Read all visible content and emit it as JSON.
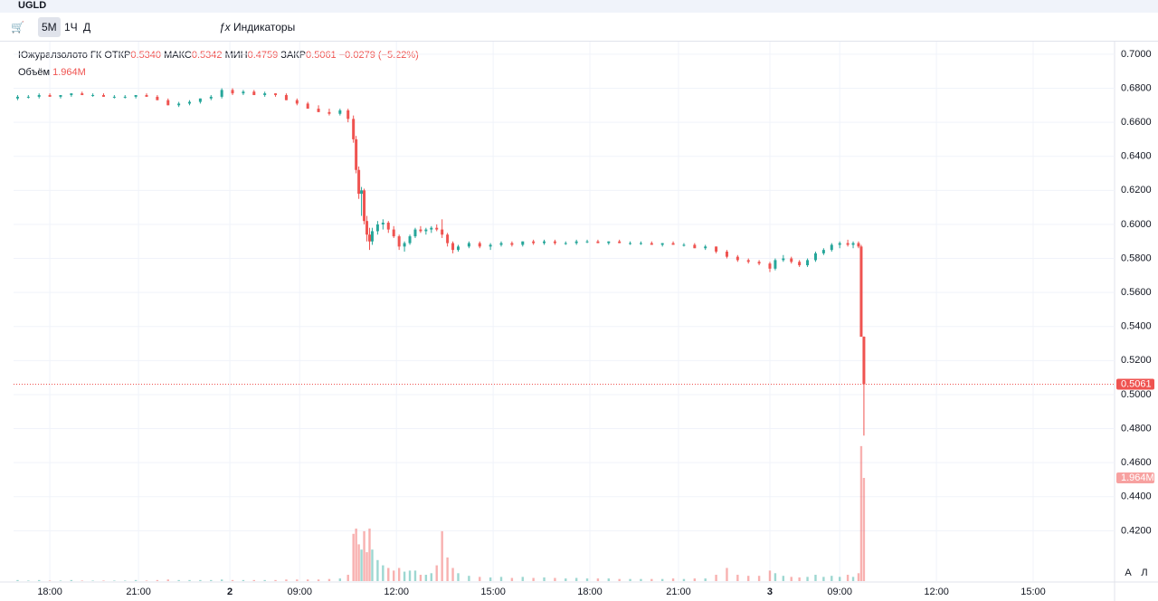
{
  "toolbar": {
    "symbol": "UGLD",
    "intervals": [
      "5М",
      "1Ч",
      "Д"
    ],
    "indicators": "Индикаторы"
  },
  "legend": {
    "name": "Южуралзолото ГК",
    "open_label": "ОТКР",
    "open": "0.5340",
    "high_label": "МАКС",
    "high": "0.5342",
    "low_label": "МИН",
    "low": "0.4759",
    "close_label": "ЗАКР",
    "close": "0.5061",
    "change": "−0.0279",
    "change_pct": "(−5.22%)",
    "volume_label": "Объём",
    "volume": "1.964M"
  },
  "scale_buttons": [
    "A",
    "Л"
  ],
  "chart_data": {
    "type": "candlestick",
    "up_color": "#26a69a",
    "down_color": "#ef5350",
    "grid": true,
    "ylim": [
      0.3904,
      0.7074
    ],
    "yticks": [
      {
        "value": 0.42,
        "label": "0.4200"
      },
      {
        "value": 0.44,
        "label": "0.4400"
      },
      {
        "value": 0.46,
        "label": "0.4600"
      },
      {
        "value": 0.48,
        "label": "0.4800"
      },
      {
        "value": 0.5,
        "label": "0.5000"
      },
      {
        "value": 0.52,
        "label": "0.5200"
      },
      {
        "value": 0.54,
        "label": "0.5400"
      },
      {
        "value": 0.56,
        "label": "0.5600"
      },
      {
        "value": 0.58,
        "label": "0.5800"
      },
      {
        "value": 0.6,
        "label": "0.6000"
      },
      {
        "value": 0.62,
        "label": "0.6200"
      },
      {
        "value": 0.64,
        "label": "0.6400"
      },
      {
        "value": 0.66,
        "label": "0.6600"
      },
      {
        "value": 0.68,
        "label": "0.6800"
      },
      {
        "value": 0.7,
        "label": "0.7000"
      }
    ],
    "xlim": [
      -13.5,
      396.3
    ],
    "xticks": [
      {
        "value": 0,
        "label": "18:00"
      },
      {
        "value": 33,
        "label": "21:00"
      },
      {
        "value": 67,
        "label": "2"
      },
      {
        "value": 93,
        "label": "09:00"
      },
      {
        "value": 129,
        "label": "12:00"
      },
      {
        "value": 165,
        "label": "15:00"
      },
      {
        "value": 201,
        "label": "18:00"
      },
      {
        "value": 234,
        "label": "21:00"
      },
      {
        "value": 268,
        "label": "3"
      },
      {
        "value": 294,
        "label": "09:00"
      },
      {
        "value": 330,
        "label": "12:00"
      },
      {
        "value": 366,
        "label": "15:00"
      }
    ],
    "volume_lim": [
      0,
      10.27
    ],
    "candles": [
      {
        "x": -12,
        "o": 0.674,
        "h": 0.676,
        "l": 0.673,
        "c": 0.675,
        "v": 0.02
      },
      {
        "x": -8,
        "o": 0.675,
        "h": 0.676,
        "l": 0.674,
        "c": 0.675,
        "v": 0.01
      },
      {
        "x": -4,
        "o": 0.675,
        "h": 0.677,
        "l": 0.674,
        "c": 0.676,
        "v": 0.02
      },
      {
        "x": 0,
        "o": 0.676,
        "h": 0.677,
        "l": 0.675,
        "c": 0.675,
        "v": 0.01
      },
      {
        "x": 4,
        "o": 0.675,
        "h": 0.676,
        "l": 0.674,
        "c": 0.676,
        "v": 0.01
      },
      {
        "x": 8,
        "o": 0.676,
        "h": 0.677,
        "l": 0.675,
        "c": 0.677,
        "v": 0.02
      },
      {
        "x": 12,
        "o": 0.677,
        "h": 0.678,
        "l": 0.676,
        "c": 0.676,
        "v": 0.01
      },
      {
        "x": 16,
        "o": 0.676,
        "h": 0.677,
        "l": 0.675,
        "c": 0.676,
        "v": 0.01
      },
      {
        "x": 20,
        "o": 0.676,
        "h": 0.677,
        "l": 0.675,
        "c": 0.675,
        "v": 0.01
      },
      {
        "x": 24,
        "o": 0.675,
        "h": 0.676,
        "l": 0.674,
        "c": 0.675,
        "v": 0.01
      },
      {
        "x": 28,
        "o": 0.675,
        "h": 0.676,
        "l": 0.674,
        "c": 0.675,
        "v": 0.01
      },
      {
        "x": 32,
        "o": 0.675,
        "h": 0.676,
        "l": 0.674,
        "c": 0.676,
        "v": 0.02
      },
      {
        "x": 36,
        "o": 0.676,
        "h": 0.677,
        "l": 0.675,
        "c": 0.675,
        "v": 0.01
      },
      {
        "x": 40,
        "o": 0.675,
        "h": 0.676,
        "l": 0.673,
        "c": 0.673,
        "v": 0.02
      },
      {
        "x": 44,
        "o": 0.673,
        "h": 0.674,
        "l": 0.67,
        "c": 0.67,
        "v": 0.03
      },
      {
        "x": 48,
        "o": 0.67,
        "h": 0.672,
        "l": 0.669,
        "c": 0.671,
        "v": 0.02
      },
      {
        "x": 52,
        "o": 0.671,
        "h": 0.673,
        "l": 0.67,
        "c": 0.672,
        "v": 0.02
      },
      {
        "x": 56,
        "o": 0.672,
        "h": 0.674,
        "l": 0.671,
        "c": 0.674,
        "v": 0.02
      },
      {
        "x": 60,
        "o": 0.674,
        "h": 0.676,
        "l": 0.673,
        "c": 0.675,
        "v": 0.02
      },
      {
        "x": 64,
        "o": 0.675,
        "h": 0.68,
        "l": 0.674,
        "c": 0.679,
        "v": 0.03
      },
      {
        "x": 68,
        "o": 0.679,
        "h": 0.68,
        "l": 0.676,
        "c": 0.677,
        "v": 0.02
      },
      {
        "x": 72,
        "o": 0.677,
        "h": 0.679,
        "l": 0.676,
        "c": 0.678,
        "v": 0.02
      },
      {
        "x": 76,
        "o": 0.678,
        "h": 0.679,
        "l": 0.676,
        "c": 0.676,
        "v": 0.02
      },
      {
        "x": 80,
        "o": 0.676,
        "h": 0.678,
        "l": 0.675,
        "c": 0.677,
        "v": 0.02
      },
      {
        "x": 84,
        "o": 0.677,
        "h": 0.677,
        "l": 0.675,
        "c": 0.676,
        "v": 0.02
      },
      {
        "x": 88,
        "o": 0.676,
        "h": 0.677,
        "l": 0.673,
        "c": 0.673,
        "v": 0.03
      },
      {
        "x": 92,
        "o": 0.673,
        "h": 0.674,
        "l": 0.67,
        "c": 0.671,
        "v": 0.03
      },
      {
        "x": 96,
        "o": 0.671,
        "h": 0.672,
        "l": 0.668,
        "c": 0.668,
        "v": 0.03
      },
      {
        "x": 100,
        "o": 0.668,
        "h": 0.67,
        "l": 0.666,
        "c": 0.666,
        "v": 0.03
      },
      {
        "x": 104,
        "o": 0.666,
        "h": 0.668,
        "l": 0.664,
        "c": 0.665,
        "v": 0.04
      },
      {
        "x": 108,
        "o": 0.665,
        "h": 0.668,
        "l": 0.664,
        "c": 0.667,
        "v": 0.05
      },
      {
        "x": 111,
        "o": 0.667,
        "h": 0.668,
        "l": 0.66,
        "c": 0.662,
        "v": 0.12
      },
      {
        "x": 113,
        "o": 0.662,
        "h": 0.664,
        "l": 0.648,
        "c": 0.65,
        "v": 0.9
      },
      {
        "x": 114,
        "o": 0.65,
        "h": 0.652,
        "l": 0.63,
        "c": 0.632,
        "v": 1.0
      },
      {
        "x": 115,
        "o": 0.632,
        "h": 0.634,
        "l": 0.615,
        "c": 0.618,
        "v": 0.7
      },
      {
        "x": 116,
        "o": 0.618,
        "h": 0.622,
        "l": 0.605,
        "c": 0.62,
        "v": 0.6
      },
      {
        "x": 117,
        "o": 0.62,
        "h": 0.621,
        "l": 0.6,
        "c": 0.602,
        "v": 0.95
      },
      {
        "x": 118,
        "o": 0.602,
        "h": 0.605,
        "l": 0.59,
        "c": 0.594,
        "v": 0.55
      },
      {
        "x": 119,
        "o": 0.594,
        "h": 0.598,
        "l": 0.585,
        "c": 0.59,
        "v": 1.0
      },
      {
        "x": 120,
        "o": 0.59,
        "h": 0.598,
        "l": 0.588,
        "c": 0.596,
        "v": 0.6
      },
      {
        "x": 122,
        "o": 0.596,
        "h": 0.602,
        "l": 0.594,
        "c": 0.6,
        "v": 0.4
      },
      {
        "x": 124,
        "o": 0.6,
        "h": 0.603,
        "l": 0.597,
        "c": 0.601,
        "v": 0.3
      },
      {
        "x": 126,
        "o": 0.601,
        "h": 0.602,
        "l": 0.595,
        "c": 0.597,
        "v": 0.25
      },
      {
        "x": 128,
        "o": 0.597,
        "h": 0.599,
        "l": 0.592,
        "c": 0.593,
        "v": 0.2
      },
      {
        "x": 130,
        "o": 0.593,
        "h": 0.594,
        "l": 0.585,
        "c": 0.587,
        "v": 0.25
      },
      {
        "x": 132,
        "o": 0.587,
        "h": 0.59,
        "l": 0.584,
        "c": 0.589,
        "v": 0.18
      },
      {
        "x": 134,
        "o": 0.589,
        "h": 0.594,
        "l": 0.588,
        "c": 0.593,
        "v": 0.2
      },
      {
        "x": 136,
        "o": 0.593,
        "h": 0.598,
        "l": 0.592,
        "c": 0.597,
        "v": 0.2
      },
      {
        "x": 138,
        "o": 0.597,
        "h": 0.599,
        "l": 0.595,
        "c": 0.596,
        "v": 0.12
      },
      {
        "x": 140,
        "o": 0.596,
        "h": 0.598,
        "l": 0.594,
        "c": 0.597,
        "v": 0.12
      },
      {
        "x": 142,
        "o": 0.597,
        "h": 0.599,
        "l": 0.595,
        "c": 0.598,
        "v": 0.15
      },
      {
        "x": 144,
        "o": 0.598,
        "h": 0.6,
        "l": 0.596,
        "c": 0.597,
        "v": 0.3
      },
      {
        "x": 146,
        "o": 0.597,
        "h": 0.603,
        "l": 0.592,
        "c": 0.594,
        "v": 0.95
      },
      {
        "x": 148,
        "o": 0.594,
        "h": 0.595,
        "l": 0.587,
        "c": 0.589,
        "v": 0.45
      },
      {
        "x": 150,
        "o": 0.589,
        "h": 0.59,
        "l": 0.583,
        "c": 0.585,
        "v": 0.25
      },
      {
        "x": 152,
        "o": 0.585,
        "h": 0.588,
        "l": 0.584,
        "c": 0.587,
        "v": 0.15
      },
      {
        "x": 156,
        "o": 0.587,
        "h": 0.59,
        "l": 0.586,
        "c": 0.589,
        "v": 0.1
      },
      {
        "x": 160,
        "o": 0.589,
        "h": 0.59,
        "l": 0.586,
        "c": 0.587,
        "v": 0.08
      },
      {
        "x": 164,
        "o": 0.587,
        "h": 0.589,
        "l": 0.585,
        "c": 0.588,
        "v": 0.07
      },
      {
        "x": 168,
        "o": 0.588,
        "h": 0.59,
        "l": 0.587,
        "c": 0.589,
        "v": 0.08
      },
      {
        "x": 172,
        "o": 0.589,
        "h": 0.59,
        "l": 0.587,
        "c": 0.588,
        "v": 0.06
      },
      {
        "x": 176,
        "o": 0.588,
        "h": 0.59,
        "l": 0.587,
        "c": 0.59,
        "v": 0.08
      },
      {
        "x": 180,
        "o": 0.59,
        "h": 0.591,
        "l": 0.588,
        "c": 0.589,
        "v": 0.06
      },
      {
        "x": 184,
        "o": 0.589,
        "h": 0.591,
        "l": 0.588,
        "c": 0.59,
        "v": 0.07
      },
      {
        "x": 188,
        "o": 0.59,
        "h": 0.591,
        "l": 0.588,
        "c": 0.589,
        "v": 0.06
      },
      {
        "x": 192,
        "o": 0.589,
        "h": 0.59,
        "l": 0.588,
        "c": 0.589,
        "v": 0.05
      },
      {
        "x": 196,
        "o": 0.589,
        "h": 0.591,
        "l": 0.588,
        "c": 0.59,
        "v": 0.06
      },
      {
        "x": 200,
        "o": 0.59,
        "h": 0.591,
        "l": 0.589,
        "c": 0.59,
        "v": 0.05
      },
      {
        "x": 204,
        "o": 0.59,
        "h": 0.591,
        "l": 0.589,
        "c": 0.589,
        "v": 0.05
      },
      {
        "x": 208,
        "o": 0.589,
        "h": 0.59,
        "l": 0.588,
        "c": 0.59,
        "v": 0.05
      },
      {
        "x": 212,
        "o": 0.59,
        "h": 0.591,
        "l": 0.589,
        "c": 0.589,
        "v": 0.04
      },
      {
        "x": 216,
        "o": 0.589,
        "h": 0.59,
        "l": 0.588,
        "c": 0.589,
        "v": 0.04
      },
      {
        "x": 220,
        "o": 0.589,
        "h": 0.59,
        "l": 0.588,
        "c": 0.589,
        "v": 0.04
      },
      {
        "x": 224,
        "o": 0.589,
        "h": 0.59,
        "l": 0.588,
        "c": 0.588,
        "v": 0.04
      },
      {
        "x": 228,
        "o": 0.588,
        "h": 0.589,
        "l": 0.587,
        "c": 0.589,
        "v": 0.04
      },
      {
        "x": 232,
        "o": 0.589,
        "h": 0.59,
        "l": 0.588,
        "c": 0.588,
        "v": 0.05
      },
      {
        "x": 236,
        "o": 0.588,
        "h": 0.589,
        "l": 0.587,
        "c": 0.588,
        "v": 0.04
      },
      {
        "x": 240,
        "o": 0.588,
        "h": 0.589,
        "l": 0.586,
        "c": 0.586,
        "v": 0.05
      },
      {
        "x": 244,
        "o": 0.586,
        "h": 0.588,
        "l": 0.585,
        "c": 0.587,
        "v": 0.05
      },
      {
        "x": 248,
        "o": 0.587,
        "h": 0.587,
        "l": 0.583,
        "c": 0.584,
        "v": 0.12
      },
      {
        "x": 252,
        "o": 0.584,
        "h": 0.585,
        "l": 0.58,
        "c": 0.581,
        "v": 0.25
      },
      {
        "x": 256,
        "o": 0.581,
        "h": 0.582,
        "l": 0.578,
        "c": 0.579,
        "v": 0.12
      },
      {
        "x": 260,
        "o": 0.579,
        "h": 0.58,
        "l": 0.577,
        "c": 0.578,
        "v": 0.1
      },
      {
        "x": 264,
        "o": 0.578,
        "h": 0.579,
        "l": 0.576,
        "c": 0.577,
        "v": 0.1
      },
      {
        "x": 268,
        "o": 0.577,
        "h": 0.578,
        "l": 0.572,
        "c": 0.574,
        "v": 0.2
      },
      {
        "x": 270,
        "o": 0.574,
        "h": 0.58,
        "l": 0.573,
        "c": 0.579,
        "v": 0.15
      },
      {
        "x": 273,
        "o": 0.579,
        "h": 0.582,
        "l": 0.578,
        "c": 0.58,
        "v": 0.1
      },
      {
        "x": 276,
        "o": 0.58,
        "h": 0.581,
        "l": 0.577,
        "c": 0.578,
        "v": 0.08
      },
      {
        "x": 279,
        "o": 0.578,
        "h": 0.579,
        "l": 0.575,
        "c": 0.576,
        "v": 0.07
      },
      {
        "x": 282,
        "o": 0.576,
        "h": 0.58,
        "l": 0.575,
        "c": 0.579,
        "v": 0.08
      },
      {
        "x": 285,
        "o": 0.579,
        "h": 0.584,
        "l": 0.578,
        "c": 0.583,
        "v": 0.12
      },
      {
        "x": 288,
        "o": 0.583,
        "h": 0.586,
        "l": 0.582,
        "c": 0.585,
        "v": 0.08
      },
      {
        "x": 291,
        "o": 0.585,
        "h": 0.589,
        "l": 0.584,
        "c": 0.588,
        "v": 0.1
      },
      {
        "x": 294,
        "o": 0.588,
        "h": 0.59,
        "l": 0.586,
        "c": 0.589,
        "v": 0.08
      },
      {
        "x": 297,
        "o": 0.589,
        "h": 0.591,
        "l": 0.587,
        "c": 0.588,
        "v": 0.12
      },
      {
        "x": 299,
        "o": 0.588,
        "h": 0.59,
        "l": 0.586,
        "c": 0.589,
        "v": 0.08
      },
      {
        "x": 301,
        "o": 0.589,
        "h": 0.59,
        "l": 0.586,
        "c": 0.587,
        "v": 0.15
      },
      {
        "x": 302,
        "o": 0.587,
        "h": 0.588,
        "l": 0.534,
        "c": 0.534,
        "v": 2.57
      },
      {
        "x": 303,
        "o": 0.534,
        "h": 0.5342,
        "l": 0.4759,
        "c": 0.5061,
        "v": 1.964
      }
    ]
  }
}
